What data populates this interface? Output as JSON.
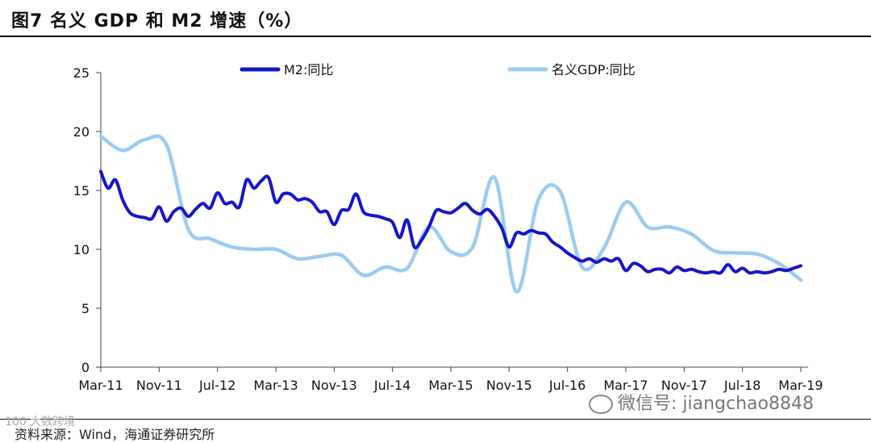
{
  "title": "图7  名义 GDP 和 M2 增速（%）",
  "source": "资料来源：Wind，海通证券研究所",
  "watermark": "微信号: jiangchao8848",
  "corner_mark": "100 大数跨境",
  "colors": {
    "m2": "#1616c8",
    "gdp": "#9dcbf0",
    "axis": "#444444"
  },
  "chart_data": {
    "type": "line",
    "title": "名义 GDP 和 M2 增速（%）",
    "xlabel": "",
    "ylabel": "",
    "ylim": [
      0,
      25
    ],
    "yticks": [
      0,
      5,
      10,
      15,
      20,
      25
    ],
    "xlim": [
      0,
      97
    ],
    "xticks": [
      {
        "i": 0,
        "label": "Mar-11"
      },
      {
        "i": 8,
        "label": "Nov-11"
      },
      {
        "i": 16,
        "label": "Jul-12"
      },
      {
        "i": 24,
        "label": "Mar-13"
      },
      {
        "i": 32,
        "label": "Nov-13"
      },
      {
        "i": 40,
        "label": "Jul-14"
      },
      {
        "i": 48,
        "label": "Mar-15"
      },
      {
        "i": 56,
        "label": "Nov-15"
      },
      {
        "i": 64,
        "label": "Jul-16"
      },
      {
        "i": 72,
        "label": "Mar-17"
      },
      {
        "i": 80,
        "label": "Nov-17"
      },
      {
        "i": 88,
        "label": "Jul-18"
      },
      {
        "i": 96,
        "label": "Mar-19"
      }
    ],
    "series": [
      {
        "name": "M2:同比",
        "color": "#1616c8",
        "x": [
          0,
          1,
          2,
          3,
          4,
          5,
          6,
          7,
          8,
          9,
          10,
          11,
          12,
          13,
          14,
          15,
          16,
          17,
          18,
          19,
          20,
          21,
          22,
          23,
          24,
          25,
          26,
          27,
          28,
          29,
          30,
          31,
          32,
          33,
          34,
          35,
          36,
          37,
          38,
          39,
          40,
          41,
          42,
          43,
          44,
          45,
          46,
          47,
          48,
          49,
          50,
          51,
          52,
          53,
          54,
          55,
          56,
          57,
          58,
          59,
          60,
          61,
          62,
          63,
          64,
          65,
          66,
          67,
          68,
          69,
          70,
          71,
          72,
          73,
          74,
          75,
          76,
          77,
          78,
          79,
          80,
          81,
          82,
          83,
          84,
          85,
          86,
          87,
          88,
          89,
          90,
          91,
          92,
          93,
          94,
          95,
          96
        ],
        "values": [
          16.6,
          15.2,
          15.9,
          14.2,
          13.1,
          12.8,
          12.7,
          12.6,
          13.6,
          12.4,
          13.2,
          13.5,
          12.8,
          13.4,
          13.9,
          13.5,
          14.8,
          13.9,
          14.0,
          13.6,
          15.9,
          15.2,
          15.8,
          16.1,
          14.0,
          14.7,
          14.7,
          14.2,
          14.3,
          14.0,
          13.2,
          13.2,
          12.1,
          13.3,
          13.4,
          14.7,
          13.2,
          12.9,
          12.8,
          12.6,
          12.3,
          11.0,
          12.5,
          10.2,
          10.8,
          11.9,
          13.3,
          13.2,
          13.1,
          13.5,
          13.9,
          13.3,
          13.0,
          13.4,
          12.8,
          11.8,
          10.2,
          11.4,
          11.3,
          11.6,
          11.4,
          11.3,
          10.6,
          10.2,
          9.7,
          9.3,
          9.0,
          9.2,
          8.9,
          9.2,
          9.0,
          9.2,
          8.2,
          8.8,
          8.6,
          8.1,
          8.3,
          8.3,
          8.0,
          8.5,
          8.2,
          8.3,
          8.1,
          8.0,
          8.1,
          8.0,
          8.7,
          8.1,
          8.4,
          8.0,
          8.1,
          8.0,
          8.1,
          8.3,
          8.2,
          8.4,
          8.6
        ]
      },
      {
        "name": "名义GDP:同比",
        "color": "#9dcbf0",
        "x": [
          0,
          3,
          6,
          9,
          12,
          15,
          18,
          21,
          24,
          27,
          30,
          33,
          36,
          39,
          42,
          45,
          48,
          51,
          54,
          57,
          60,
          63,
          66,
          69,
          72,
          75,
          78,
          81,
          84,
          87,
          90,
          93,
          96
        ],
        "values": [
          19.6,
          18.4,
          19.3,
          18.9,
          11.7,
          10.9,
          10.2,
          10.0,
          10.0,
          9.2,
          9.4,
          9.5,
          7.8,
          8.5,
          8.4,
          11.9,
          9.8,
          10.2,
          16.1,
          6.4,
          14.2,
          14.9,
          8.5,
          10.1,
          14.0,
          11.9,
          11.9,
          11.3,
          9.9,
          9.7,
          9.6,
          8.8,
          7.4
        ]
      }
    ],
    "legend": "top"
  }
}
